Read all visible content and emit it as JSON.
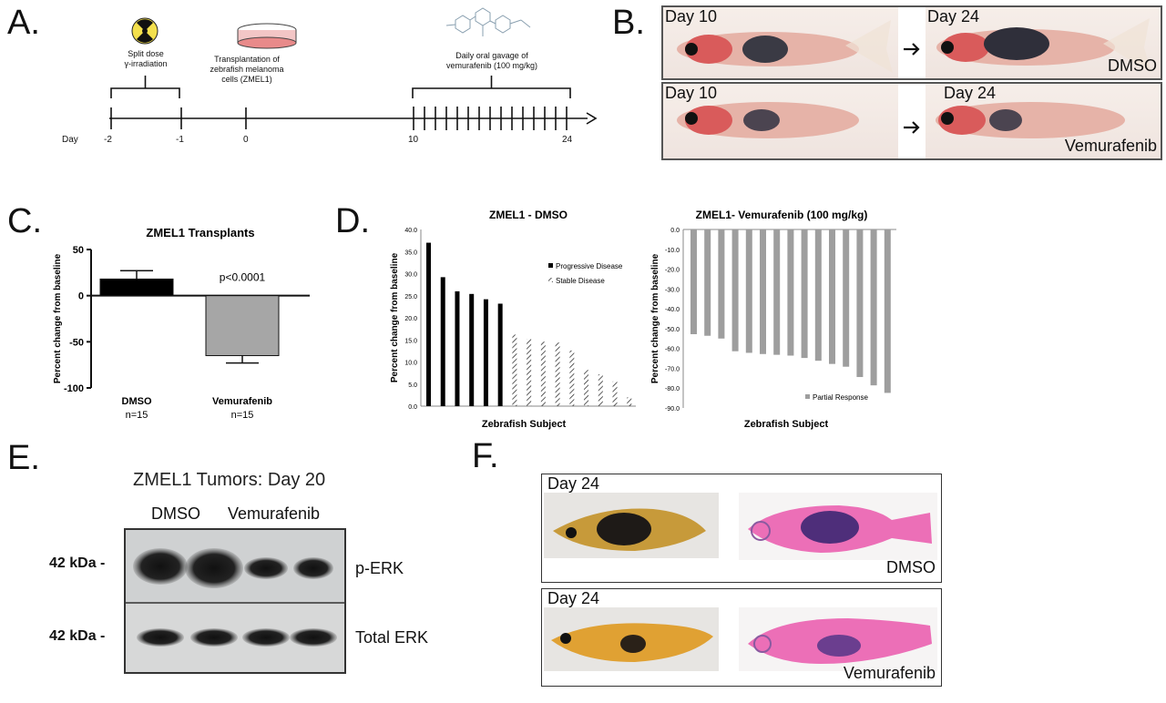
{
  "panels": {
    "a": {
      "letter": "A.",
      "irradiation": "Split dose\nγ-irradiation",
      "transplant": "Transplantation of\nzebrafish melanoma\ncells (ZMEL1)",
      "gavage": "Daily oral gavage of\nvemurafenib (100 mg/kg)",
      "day_label": "Day",
      "days": [
        "-2",
        "-1",
        "0",
        "10",
        "24"
      ]
    },
    "b": {
      "letter": "B.",
      "rows": [
        {
          "left_label": "Day 10",
          "right_label": "Day 24",
          "group": "DMSO"
        },
        {
          "left_label": "Day 10",
          "right_label": "Day 24",
          "group": "Vemurafenib"
        }
      ]
    },
    "c": {
      "letter": "C.",
      "title": "ZMEL1 Transplants",
      "ylabel": "Percent change from baseline",
      "pvalue": "p<0.0001",
      "n_labels": [
        "n=15",
        "n=15"
      ]
    },
    "d": {
      "letter": "D.",
      "left_title": "ZMEL1 - DMSO",
      "right_title": "ZMEL1- Vemurafenib (100 mg/kg)",
      "ylabel": "Percent change from baseline",
      "xlabel": "Zebrafish Subject",
      "legend_left": [
        "Progressive Disease",
        "Stable Disease"
      ],
      "legend_right": [
        "Partial Response"
      ]
    },
    "e": {
      "letter": "E.",
      "title": "ZMEL1 Tumors: Day 20",
      "lanes": [
        "DMSO",
        "Vemurafenib"
      ],
      "kda": [
        "42 kDa -",
        "42 kDa -"
      ],
      "bands": [
        "p-ERK",
        "Total ERK"
      ]
    },
    "f": {
      "letter": "F.",
      "rows": [
        {
          "day": "Day 24",
          "group": "DMSO"
        },
        {
          "day": "Day 24",
          "group": "Vemurafenib"
        }
      ]
    }
  },
  "colors": {
    "dmso_bar": "#000000",
    "vem_bar": "#a6a6a6",
    "progressive": "#000000",
    "stable": "#333333",
    "partial": "#9e9e9e"
  },
  "chart_data": [
    {
      "type": "bar",
      "id": "C",
      "title": "ZMEL1 Transplants",
      "categories": [
        "DMSO",
        "Vemurafenib"
      ],
      "values": [
        18,
        -65
      ],
      "errors": [
        9,
        8
      ],
      "ylabel": "Percent change from baseline",
      "ylim": [
        -100,
        50
      ],
      "yticks": [
        -100,
        -50,
        0,
        50
      ],
      "annotations": [
        "p<0.0001",
        "n=15",
        "n=15"
      ]
    },
    {
      "type": "bar",
      "id": "D-left",
      "title": "ZMEL1 - DMSO",
      "xlabel": "Zebrafish Subject",
      "ylabel": "Percent change from baseline",
      "ylim": [
        0,
        40
      ],
      "yticks": [
        "0.0",
        "5.0",
        "10.0",
        "15.0",
        "20.0",
        "25.0",
        "30.0",
        "35.0",
        "40.0"
      ],
      "series": [
        {
          "name": "Progressive Disease",
          "values": [
            37.0,
            29.2,
            26.0,
            25.4,
            24.2,
            23.2
          ]
        },
        {
          "name": "Stable Disease",
          "values": [
            16.2,
            15.2,
            14.6,
            14.4,
            12.6,
            8.2,
            7.2,
            5.6,
            2.0
          ]
        }
      ],
      "legend": "top-right"
    },
    {
      "type": "bar",
      "id": "D-right",
      "title": "ZMEL1- Vemurafenib (100 mg/kg)",
      "xlabel": "Zebrafish Subject",
      "ylabel": "Percent change from baseline",
      "ylim": [
        -90,
        0
      ],
      "yticks": [
        "0.0",
        "-10.0",
        "-20.0",
        "-30.0",
        "-40.0",
        "-50.0",
        "-60.0",
        "-70.0",
        "-80.0",
        "-90.0"
      ],
      "series": [
        {
          "name": "Partial Response",
          "values": [
            -52.8,
            -53.6,
            -55.0,
            -61.4,
            -62.2,
            -62.8,
            -63.2,
            -63.6,
            -64.8,
            -66.2,
            -67.8,
            -69.2,
            -74.4,
            -78.6,
            -82.4
          ]
        }
      ],
      "legend": "bottom-right"
    }
  ]
}
